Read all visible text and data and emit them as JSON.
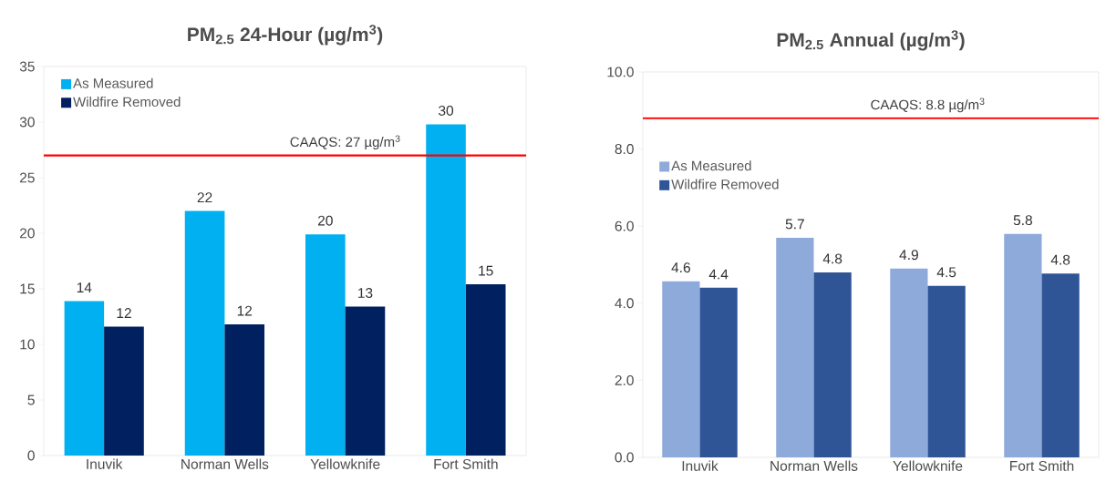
{
  "chart_data": [
    {
      "type": "bar",
      "title": "PM$_{2.5}$ 24-Hour (µg/m$^{3}$)",
      "categories": [
        "Inuvik",
        "Norman Wells",
        "Yellowknife",
        "Fort Smith"
      ],
      "series": [
        {
          "name": "As Measured",
          "color": "#00b0f0",
          "values": [
            13.9,
            22.0,
            19.9,
            29.8
          ],
          "value_labels": [
            "14",
            "22",
            "20",
            "30"
          ]
        },
        {
          "name": "Wildfire Removed",
          "color": "#002060",
          "values": [
            11.6,
            11.8,
            13.4,
            15.4
          ],
          "value_labels": [
            "12",
            "12",
            "13",
            "15"
          ]
        }
      ],
      "ylim": [
        0,
        35
      ],
      "yticks": [
        0,
        5,
        10,
        15,
        20,
        25,
        30,
        35
      ],
      "ref_lines": [
        {
          "axis": "y",
          "value": 27,
          "label": "CAAQS: 27 µg/m$^{3}$",
          "color": "#ff0000"
        }
      ],
      "legend": "top left",
      "grid": false
    },
    {
      "type": "bar",
      "title": "PM$_{2.5}$ Annual (µg/m$^{3}$)",
      "categories": [
        "Inuvik",
        "Norman Wells",
        "Yellowknife",
        "Fort Smith"
      ],
      "series": [
        {
          "name": "As Measured",
          "color": "#8eaadb",
          "values": [
            4.57,
            5.7,
            4.9,
            5.8
          ],
          "value_labels": [
            "4.6",
            "5.7",
            "4.9",
            "5.8"
          ]
        },
        {
          "name": "Wildfire Removed",
          "color": "#2f5597",
          "values": [
            4.4,
            4.8,
            4.45,
            4.77
          ],
          "value_labels": [
            "4.4",
            "4.8",
            "4.5",
            "4.8"
          ]
        }
      ],
      "ylim": [
        0,
        10
      ],
      "yticks": [
        {
          "value": 0,
          "label": "0.0"
        },
        {
          "value": 2,
          "label": "2.0"
        },
        {
          "value": 4,
          "label": "4.0"
        },
        {
          "value": 6,
          "label": "6.0"
        },
        {
          "value": 8,
          "label": "8.0"
        },
        {
          "value": 10,
          "label": "10.0"
        }
      ],
      "ref_lines": [
        {
          "axis": "y",
          "value": 8.8,
          "label": "CAAQS: 8.8 µg/m$^{3}$",
          "color": "#ff0000"
        }
      ],
      "legend": "top left",
      "grid": false
    }
  ]
}
